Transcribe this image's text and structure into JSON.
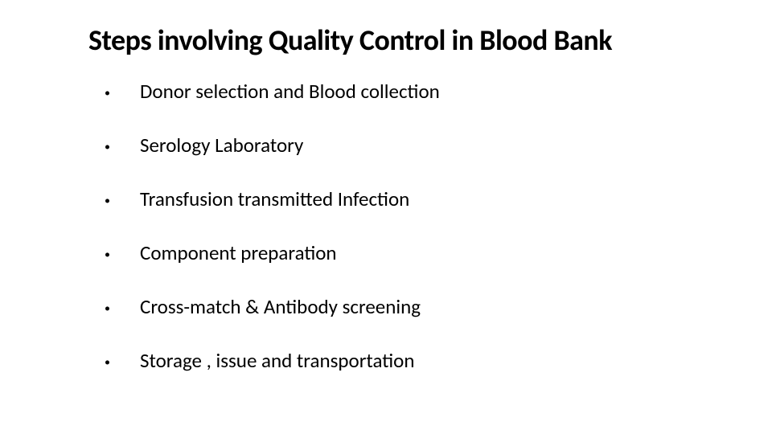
{
  "slide": {
    "title": "Steps involving Quality Control in Blood Bank",
    "title_fontsize": 36,
    "title_fontweight": 700,
    "background_color": "#ffffff",
    "text_color": "#000000",
    "font_family": "Calibri",
    "bullets": [
      "Donor selection and Blood collection",
      "Serology Laboratory",
      "Transfusion transmitted Infection",
      "Component preparation",
      "Cross-match & Antibody screening",
      "Storage , issue and transportation"
    ],
    "bullet_fontsize": 25,
    "bullet_marker": "•",
    "bullet_spacing": 37
  }
}
